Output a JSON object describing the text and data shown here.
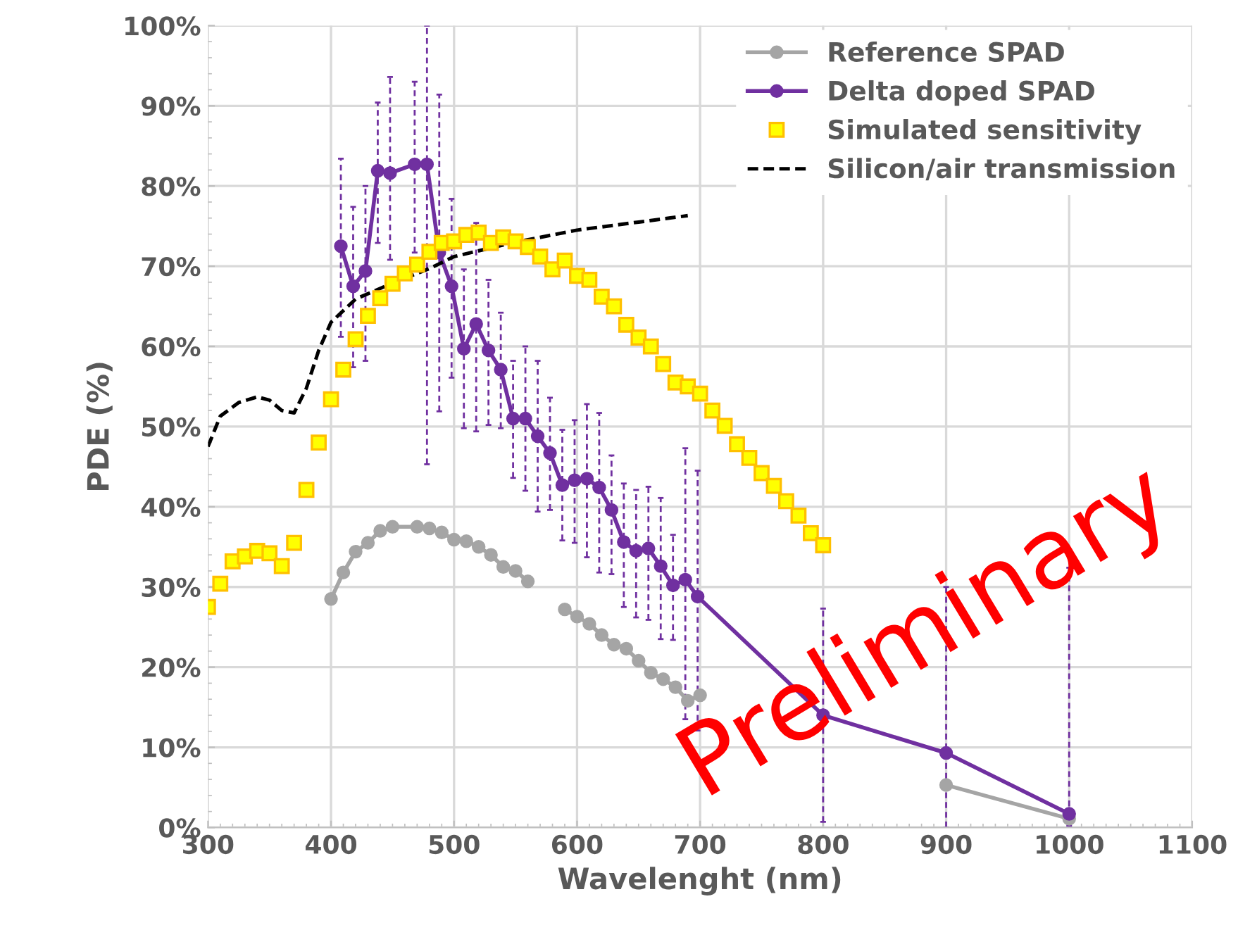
{
  "chart_data": {
    "type": "line",
    "xlabel": "Wavelenght (nm)",
    "ylabel": "PDE (%)",
    "xlim": [
      300,
      1100
    ],
    "xticks": [
      300,
      400,
      500,
      600,
      700,
      800,
      900,
      1000,
      1100
    ],
    "ylim": [
      0,
      100
    ],
    "yticks": [
      {
        "value": 0,
        "label": "0%"
      },
      {
        "value": 10,
        "label": "10%"
      },
      {
        "value": 20,
        "label": "20%"
      },
      {
        "value": 30,
        "label": "30%"
      },
      {
        "value": 40,
        "label": "40%"
      },
      {
        "value": 50,
        "label": "50%"
      },
      {
        "value": 60,
        "label": "60%"
      },
      {
        "value": 70,
        "label": "70%"
      },
      {
        "value": 80,
        "label": "80%"
      },
      {
        "value": 90,
        "label": "90%"
      },
      {
        "value": 100,
        "label": "100%"
      }
    ],
    "grid": true,
    "legend": "top right",
    "annotations": [
      "Preliminary"
    ],
    "series": [
      {
        "name": "Reference SPAD",
        "marker": "circle",
        "line_style": "solid",
        "color": "#a5a5a5",
        "x": [
          400,
          410,
          420,
          430,
          440,
          450,
          470,
          480,
          490,
          500,
          510,
          520,
          530,
          540,
          550,
          560,
          575,
          590,
          600,
          610,
          620,
          630,
          640,
          650,
          660,
          670,
          680,
          690,
          700,
          800,
          900,
          1000
        ],
        "values": [
          28.5,
          31.8,
          34.4,
          35.5,
          37.0,
          37.5,
          37.5,
          37.3,
          36.8,
          35.9,
          35.7,
          35.0,
          34.0,
          32.5,
          32.0,
          30.7,
          null,
          27.2,
          26.3,
          25.4,
          24.0,
          22.8,
          22.3,
          20.8,
          19.3,
          18.5,
          17.5,
          15.8,
          16.5,
          null,
          5.3,
          1.1
        ]
      },
      {
        "name": "Delta doped SPAD",
        "marker": "circle",
        "line_style": "solid",
        "color": "#7030a0",
        "x": [
          408,
          418,
          428,
          438,
          448,
          468,
          478,
          488,
          498,
          508,
          518,
          528,
          538,
          548,
          558,
          568,
          578,
          588,
          598,
          608,
          618,
          628,
          638,
          648,
          658,
          668,
          678,
          688,
          698,
          800,
          900,
          1000
        ],
        "values": [
          72.5,
          67.5,
          69.4,
          81.9,
          81.6,
          82.7,
          82.7,
          71.7,
          67.5,
          59.7,
          62.8,
          59.5,
          57.1,
          51.0,
          51.0,
          48.8,
          46.7,
          42.7,
          43.3,
          43.5,
          42.4,
          39.6,
          35.6,
          34.5,
          34.8,
          32.6,
          30.2,
          30.9,
          28.8,
          14.0,
          9.3,
          1.7
        ],
        "errors": [
          [
            61.2,
            83.4
          ],
          [
            57.4,
            77.4
          ],
          [
            58.2,
            80.0
          ],
          [
            72.9,
            90.4
          ],
          [
            70.8,
            93.6
          ],
          [
            71.7,
            93.0
          ],
          [
            45.3,
            100
          ],
          [
            51.9,
            91.4
          ],
          [
            56.1,
            78.4
          ],
          [
            49.8,
            69.6
          ],
          [
            49.4,
            75.4
          ],
          [
            50.2,
            68.3
          ],
          [
            49.8,
            64.2
          ],
          [
            43.6,
            58.2
          ],
          [
            42.0,
            60.0
          ],
          [
            39.4,
            58.2
          ],
          [
            39.6,
            53.6
          ],
          [
            35.8,
            49.6
          ],
          [
            35.5,
            50.8
          ],
          [
            33.7,
            52.8
          ],
          [
            31.8,
            51.7
          ],
          [
            31.6,
            46.4
          ],
          [
            27.5,
            42.9
          ],
          [
            26.2,
            42.1
          ],
          [
            25.9,
            42.5
          ],
          [
            23.5,
            41.1
          ],
          [
            23.4,
            36.5
          ],
          [
            13.5,
            47.3
          ],
          [
            12.1,
            44.5
          ],
          [
            0.7,
            27.3
          ],
          [
            0,
            30.0
          ],
          [
            0.2,
            32.4
          ]
        ]
      },
      {
        "name": "Simulated sensitivity",
        "type": "scatter",
        "marker": "square",
        "color": "#ffff00",
        "x": [
          300,
          310,
          320,
          330,
          340,
          350,
          360,
          370,
          380,
          390,
          400,
          410,
          420,
          430,
          440,
          450,
          460,
          470,
          480,
          490,
          500,
          510,
          520,
          530,
          540,
          550,
          560,
          570,
          580,
          590,
          600,
          610,
          620,
          630,
          640,
          650,
          660,
          670,
          680,
          690,
          700,
          710,
          720,
          730,
          740,
          750,
          760,
          770,
          780,
          790,
          800
        ],
        "values": [
          27.5,
          30.4,
          33.2,
          33.8,
          34.5,
          34.2,
          32.6,
          35.5,
          42.1,
          48.0,
          53.4,
          57.1,
          60.9,
          63.8,
          66.0,
          67.8,
          69.1,
          70.2,
          71.8,
          72.9,
          73.1,
          73.9,
          74.2,
          72.9,
          73.6,
          73.1,
          72.4,
          71.2,
          69.6,
          70.7,
          68.8,
          68.3,
          66.2,
          65.0,
          62.7,
          61.1,
          60.0,
          57.8,
          55.5,
          55.0,
          54.1,
          52.0,
          50.1,
          47.8,
          46.1,
          44.2,
          42.6,
          40.7,
          38.9,
          36.7,
          35.2
        ]
      },
      {
        "name": "Silicon/air transmission",
        "marker": "none",
        "line_style": "dashed",
        "color": "#000000",
        "x": [
          300,
          310,
          325,
          340,
          350,
          360,
          370,
          380,
          390,
          400,
          420,
          450,
          480,
          500,
          550,
          600,
          650,
          690
        ],
        "values": [
          47.5,
          51.3,
          53.0,
          53.7,
          53.3,
          52.0,
          51.7,
          54.8,
          59.5,
          63.0,
          65.9,
          67.9,
          69.7,
          71.2,
          73.0,
          74.5,
          75.5,
          76.3
        ]
      }
    ]
  }
}
